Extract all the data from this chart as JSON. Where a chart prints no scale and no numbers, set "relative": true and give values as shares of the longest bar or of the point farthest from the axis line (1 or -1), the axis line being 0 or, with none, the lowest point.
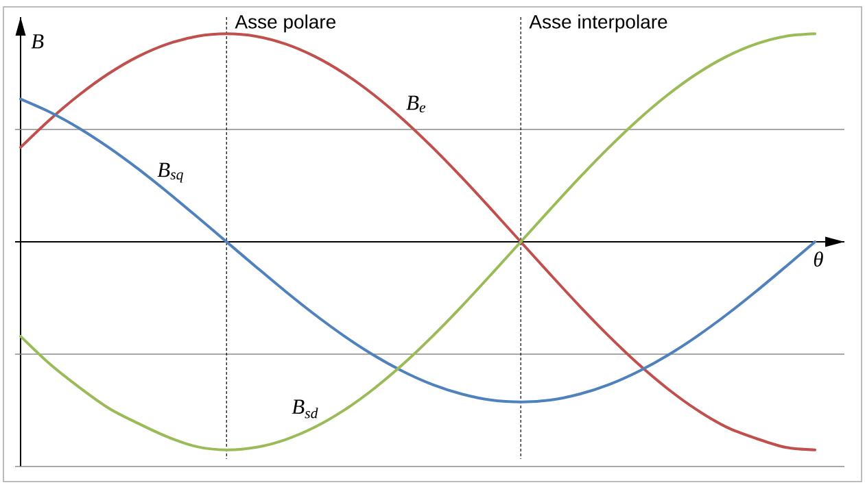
{
  "chart_data": {
    "type": "line",
    "xlabel": "θ",
    "ylabel": "B",
    "relative": true,
    "categories": [
      null,
      null,
      null,
      null,
      null,
      null,
      null,
      null,
      null,
      null,
      null,
      null,
      null,
      null,
      null,
      null,
      null,
      null,
      null,
      null,
      null,
      null,
      null,
      null,
      null,
      null,
      null,
      null
    ],
    "series": [
      {
        "name": "B$_{e}$",
        "color": "#c0504d",
        "values": [
          0.454,
          0.588,
          0.707,
          0.809,
          0.891,
          0.951,
          0.988,
          1.0,
          0.988,
          0.951,
          0.891,
          0.809,
          0.707,
          0.588,
          0.454,
          0.309,
          0.156,
          0,
          -0.156,
          -0.309,
          -0.454,
          -0.588,
          -0.707,
          -0.809,
          -0.891,
          -0.945,
          -0.988,
          -1.0
        ]
      },
      {
        "name": "B$_{sq}$",
        "color": "#4f81bd",
        "values": [
          0.686,
          0.623,
          0.545,
          0.453,
          0.35,
          0.238,
          0.12,
          0,
          -0.12,
          -0.238,
          -0.35,
          -0.453,
          -0.545,
          -0.623,
          -0.686,
          -0.732,
          -0.761,
          -0.77,
          -0.761,
          -0.732,
          -0.686,
          -0.623,
          -0.545,
          -0.453,
          -0.35,
          -0.238,
          -0.12,
          0
        ]
      },
      {
        "name": "B$_{sd}$",
        "color": "#9bbb59",
        "values": [
          -0.454,
          -0.588,
          -0.7,
          -0.8,
          -0.873,
          -0.938,
          -0.985,
          -1.0,
          -0.988,
          -0.951,
          -0.891,
          -0.809,
          -0.707,
          -0.588,
          -0.454,
          -0.309,
          -0.156,
          0,
          0.156,
          0.309,
          0.454,
          0.588,
          0.707,
          0.809,
          0.891,
          0.951,
          0.988,
          1.0
        ]
      }
    ],
    "ref_lines": [
      {
        "axis": "y",
        "value": 0.54,
        "color": "#8a8a8a"
      },
      {
        "axis": "y",
        "value": -0.54,
        "color": "#8a8a8a"
      },
      {
        "axis": "y",
        "value": -1.08,
        "color": "#8a8a8a"
      }
    ],
    "annotations": [
      "Asse polare",
      "Asse interpolare"
    ]
  }
}
